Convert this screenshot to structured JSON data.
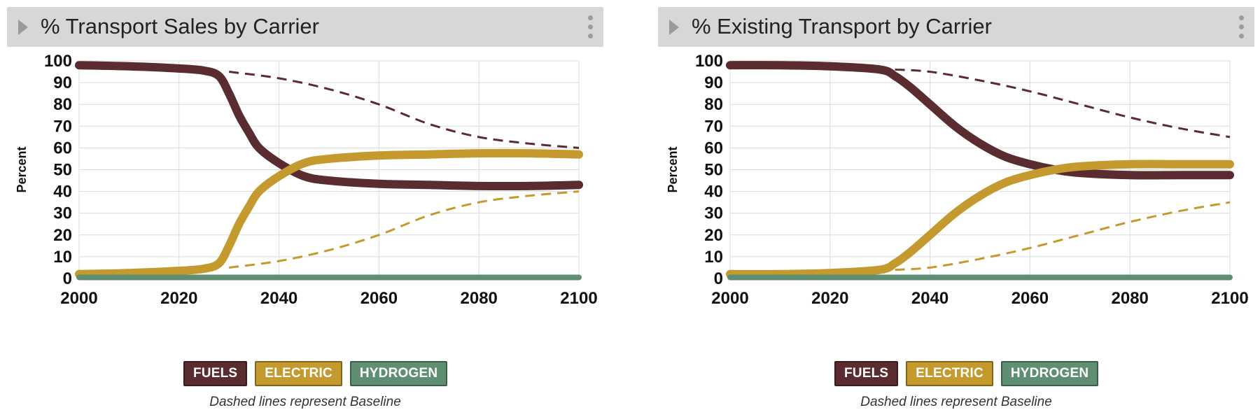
{
  "colors": {
    "fuels": "#5a2b2f",
    "electric": "#c49a2f",
    "hydrogen": "#5f8f72",
    "header_bg": "#d7d7d7",
    "grid": "#dcdcdc"
  },
  "icons": {
    "collapse": "triangle-right-icon",
    "menu": "vertical-ellipsis-icon"
  },
  "panels": [
    {
      "title": "% Transport Sales by Carrier",
      "legend": [
        "FUELS",
        "ELECTRIC",
        "HYDROGEN"
      ],
      "note": "Dashed lines represent Baseline"
    },
    {
      "title": "% Existing Transport by Carrier",
      "legend": [
        "FUELS",
        "ELECTRIC",
        "HYDROGEN"
      ],
      "note": "Dashed lines represent Baseline"
    }
  ],
  "chart_data": [
    {
      "type": "line",
      "title": "% Transport Sales by Carrier",
      "xlabel": "",
      "ylabel": "Percent",
      "xlim": [
        2000,
        2100
      ],
      "ylim": [
        0,
        100
      ],
      "xticks": [
        2000,
        2020,
        2040,
        2060,
        2080,
        2100
      ],
      "yticks": [
        0,
        10,
        20,
        30,
        40,
        50,
        60,
        70,
        80,
        90,
        100
      ],
      "grid": true,
      "legend_position": "bottom",
      "series": [
        {
          "name": "FUELS",
          "style": "solid",
          "color": "#5a2b2f",
          "x": [
            2000,
            2010,
            2020,
            2025,
            2028,
            2030,
            2032,
            2034,
            2036,
            2040,
            2045,
            2050,
            2060,
            2070,
            2080,
            2090,
            2100
          ],
          "y": [
            98,
            97.5,
            96.5,
            95.5,
            93,
            85,
            75,
            67,
            60,
            53,
            47,
            45,
            43.5,
            43,
            42.5,
            42.5,
            43
          ]
        },
        {
          "name": "ELECTRIC",
          "style": "solid",
          "color": "#c49a2f",
          "x": [
            2000,
            2010,
            2020,
            2025,
            2028,
            2030,
            2032,
            2034,
            2036,
            2040,
            2045,
            2050,
            2060,
            2070,
            2080,
            2090,
            2100
          ],
          "y": [
            2,
            2.5,
            3.5,
            4.5,
            7,
            15,
            25,
            33,
            40,
            47,
            53,
            55,
            56.5,
            57,
            57.5,
            57.5,
            57
          ]
        },
        {
          "name": "HYDROGEN",
          "style": "solid",
          "color": "#5f8f72",
          "x": [
            2000,
            2020,
            2040,
            2060,
            2080,
            2100
          ],
          "y": [
            0.5,
            0.5,
            0.5,
            0.5,
            0.5,
            0.5
          ]
        },
        {
          "name": "FUELS",
          "style": "dashed",
          "color": "#5a2b2f",
          "x": [
            2030,
            2040,
            2050,
            2060,
            2070,
            2080,
            2090,
            2100
          ],
          "y": [
            95,
            92,
            87,
            80,
            71,
            65,
            62,
            60
          ]
        },
        {
          "name": "ELECTRIC",
          "style": "dashed",
          "color": "#c49a2f",
          "x": [
            2030,
            2040,
            2050,
            2060,
            2070,
            2080,
            2090,
            2100
          ],
          "y": [
            5,
            8,
            13,
            20,
            29,
            35,
            38,
            40
          ]
        }
      ]
    },
    {
      "type": "line",
      "title": "% Existing Transport by Carrier",
      "xlabel": "",
      "ylabel": "Percent",
      "xlim": [
        2000,
        2100
      ],
      "ylim": [
        0,
        100
      ],
      "xticks": [
        2000,
        2020,
        2040,
        2060,
        2080,
        2100
      ],
      "yticks": [
        0,
        10,
        20,
        30,
        40,
        50,
        60,
        70,
        80,
        90,
        100
      ],
      "grid": true,
      "legend_position": "bottom",
      "series": [
        {
          "name": "FUELS",
          "style": "solid",
          "color": "#5a2b2f",
          "x": [
            2000,
            2010,
            2020,
            2030,
            2033,
            2036,
            2040,
            2045,
            2050,
            2055,
            2060,
            2065,
            2070,
            2080,
            2090,
            2100
          ],
          "y": [
            98,
            98,
            97.5,
            96,
            93,
            88,
            80,
            70,
            62,
            56,
            52.5,
            50,
            48.5,
            47.5,
            47.5,
            47.5
          ]
        },
        {
          "name": "ELECTRIC",
          "style": "solid",
          "color": "#c49a2f",
          "x": [
            2000,
            2010,
            2020,
            2030,
            2033,
            2036,
            2040,
            2045,
            2050,
            2055,
            2060,
            2065,
            2070,
            2080,
            2090,
            2100
          ],
          "y": [
            2,
            2,
            2.5,
            4,
            7,
            12,
            20,
            30,
            38,
            44,
            47.5,
            50,
            51.5,
            52.5,
            52.5,
            52.5
          ]
        },
        {
          "name": "HYDROGEN",
          "style": "solid",
          "color": "#5f8f72",
          "x": [
            2000,
            2020,
            2040,
            2060,
            2080,
            2100
          ],
          "y": [
            0.5,
            0.5,
            0.5,
            0.5,
            0.5,
            0.5
          ]
        },
        {
          "name": "FUELS",
          "style": "dashed",
          "color": "#5a2b2f",
          "x": [
            2033,
            2040,
            2050,
            2060,
            2070,
            2080,
            2090,
            2100
          ],
          "y": [
            96,
            95,
            91,
            86,
            80,
            74,
            69,
            65
          ]
        },
        {
          "name": "ELECTRIC",
          "style": "dashed",
          "color": "#c49a2f",
          "x": [
            2033,
            2040,
            2050,
            2060,
            2070,
            2080,
            2090,
            2100
          ],
          "y": [
            4,
            5,
            9,
            14,
            20,
            26,
            31,
            35
          ]
        }
      ]
    }
  ]
}
